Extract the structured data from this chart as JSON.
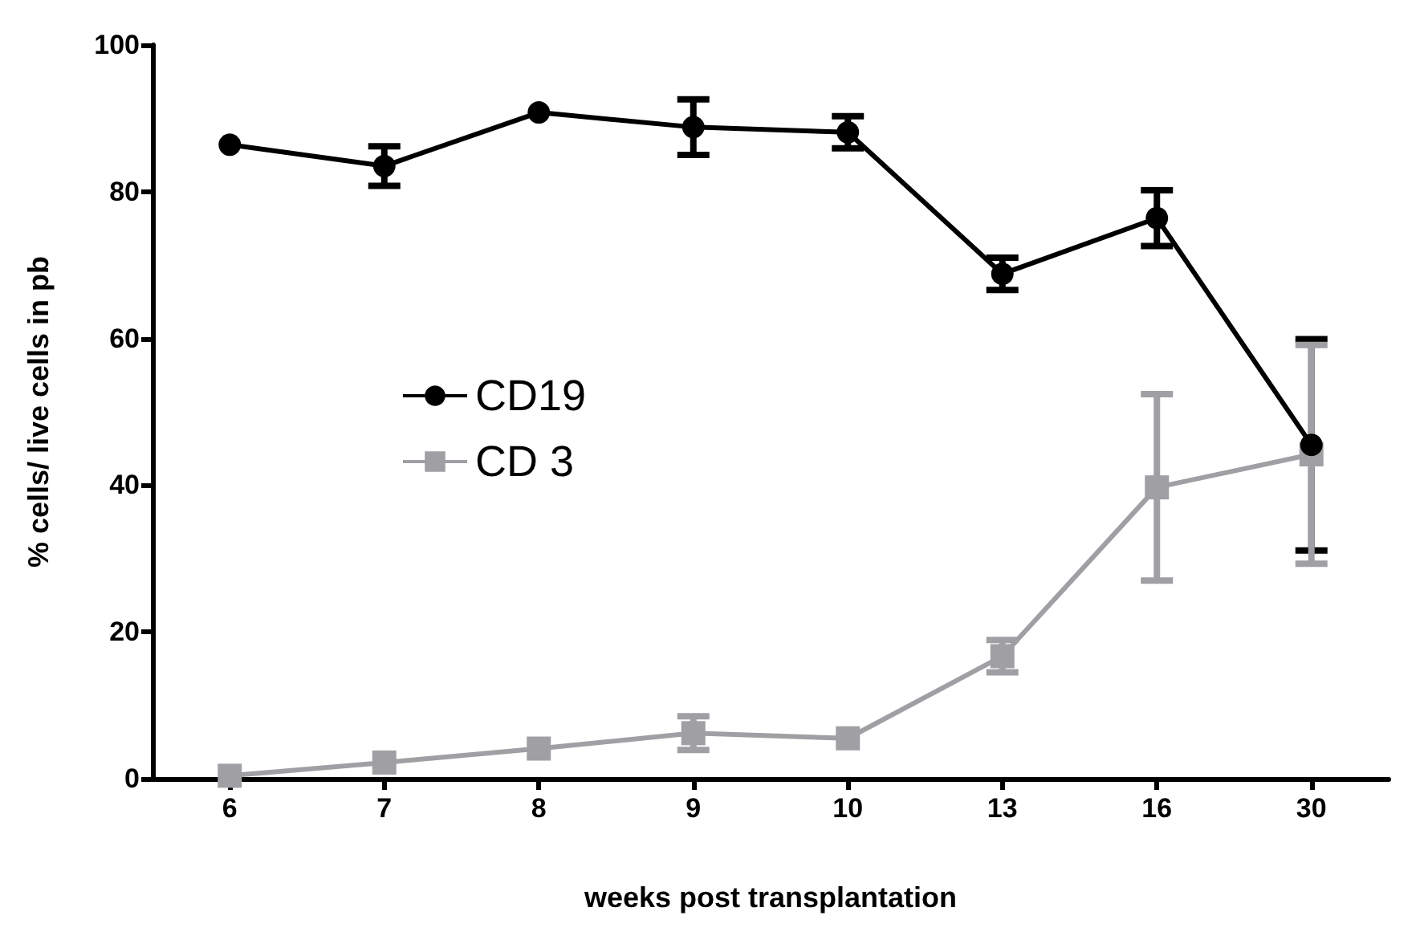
{
  "chart_data": {
    "type": "line",
    "xlabel": "weeks post transplantation",
    "ylabel": "% cells/ live cells in pb",
    "categories": [
      "6",
      "7",
      "8",
      "9",
      "10",
      "13",
      "16",
      "30"
    ],
    "series": [
      {
        "name": "CD19",
        "color": "#000000",
        "marker": "circle",
        "values": [
          86.4,
          83.5,
          90.8,
          88.8,
          88.1,
          68.8,
          76.4,
          45.5
        ],
        "errors": [
          null,
          2.7,
          null,
          3.8,
          2.2,
          2.2,
          3.8,
          14.4
        ]
      },
      {
        "name": "CD 3",
        "color": "#a0a0a4",
        "marker": "square",
        "values": [
          0.4,
          2.2,
          4.1,
          6.2,
          5.5,
          16.7,
          39.7,
          44.2
        ],
        "errors": [
          null,
          null,
          null,
          2.3,
          null,
          2.2,
          12.7,
          14.9
        ]
      }
    ],
    "ylim": [
      0,
      100
    ],
    "yticks": [
      0,
      20,
      40,
      60,
      80,
      100
    ],
    "grid": false,
    "legend": "left"
  }
}
